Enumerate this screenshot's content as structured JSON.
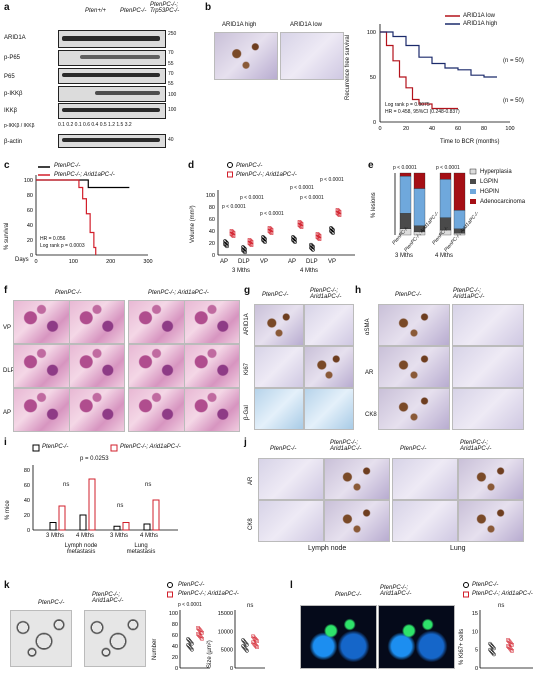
{
  "panels": {
    "a": {
      "label": "a",
      "genotypes": [
        "Pten+/+",
        "PtenPC-/-",
        "PtenPC-/-; Trp53PC-/-"
      ],
      "rows": [
        "ARID1A",
        "p-P65",
        "P65",
        "p-IKKβ",
        "IKKβ",
        "p-IKKβ / IKKβ",
        "β-actin"
      ],
      "mw": [
        "250",
        "70",
        "55",
        "70",
        "55",
        "100",
        "100",
        "40"
      ],
      "ratios": "0.1 0.2 0.1 0.6 0.4 0.5 1.2 1.5 3.2"
    },
    "b": {
      "label": "b",
      "ihc_labels": [
        "ARID1A high",
        "ARID1A low"
      ],
      "legend": [
        "ARID1A low",
        "ARID1A high"
      ],
      "stats": [
        "Log rank p = 0.0075",
        "HR = 0.458, 95%CI (0.248-0.837)"
      ],
      "n_labels": [
        "(n = 50)",
        "(n = 50)"
      ]
    },
    "c": {
      "label": "c",
      "legend": [
        "PtenPC-/-",
        "PtenPC-/-; Arid1aPC-/-"
      ],
      "stats": [
        "HR = 0.056",
        "Log rank p = 0.0003"
      ]
    },
    "d": {
      "label": "d",
      "legend": [
        "PtenPC-/-",
        "PtenPC-/-; Arid1aPC-/-"
      ],
      "pvals": [
        "p < 0.0001",
        "p < 0.0001",
        "p < 0.0001",
        "p < 0.0001",
        "p < 0.0001",
        "p < 0.0001"
      ]
    },
    "e": {
      "label": "e",
      "legend": [
        "Hyperplasia",
        "LGPIN",
        "HGPIN",
        "Adenocarcinoma"
      ],
      "pvals": [
        "p < 0.0001",
        "p < 0.0001"
      ]
    },
    "f": {
      "label": "f",
      "titles": [
        "PtenPC-/-",
        "PtenPC-/-; Arid1aPC-/-"
      ],
      "rows": [
        "VP",
        "DLP",
        "AP"
      ]
    },
    "g": {
      "label": "g",
      "titles": [
        "PtenPC-/-",
        "PtenPC-/-; Arid1aPC-/-"
      ],
      "rows": [
        "ARID1A",
        "Ki67",
        "β-Gal"
      ]
    },
    "h": {
      "label": "h",
      "titles": [
        "PtenPC-/-",
        "PtenPC-/-; Arid1aPC-/-"
      ],
      "rows": [
        "αSMA",
        "AR",
        "CK8"
      ]
    },
    "i": {
      "label": "i",
      "legend": [
        "PtenPC-/-",
        "PtenPC-/-; Arid1aPC-/-"
      ],
      "groups": [
        "Lymph node metastasis",
        "Lung metastasis"
      ],
      "annotations": [
        "ns",
        "p = 0.0253",
        "ns",
        "ns"
      ]
    },
    "j": {
      "label": "j",
      "titles": [
        "PtenPC-/-",
        "PtenPC-/-; Arid1aPC-/-",
        "PtenPC-/-",
        "PtenPC-/-; Arid1aPC-/-"
      ],
      "rows": [
        "AR",
        "CK8"
      ],
      "tissues": [
        "Lymph node",
        "Lung"
      ]
    },
    "k": {
      "label": "k",
      "titles": [
        "PtenPC-/-",
        "PtenPC-/-; Arid1aPC-/-"
      ],
      "legend": [
        "PtenPC-/-",
        "PtenPC-/-; Arid1aPC-/-"
      ],
      "annotations": [
        "p < 0.0001",
        "ns"
      ]
    },
    "l": {
      "label": "l",
      "titles": [
        "PtenPC-/-",
        "PtenPC-/-; Arid1aPC-/-"
      ],
      "legend": [
        "PtenPC-/-",
        "PtenPC-/-; Arid1aPC-/-"
      ],
      "annotations": [
        "ns"
      ]
    }
  },
  "chart_data": [
    {
      "id": "b-km",
      "type": "line",
      "xlabel": "Time to BCR (months)",
      "ylabel": "Recurrence free survival",
      "xlim": [
        0,
        100
      ],
      "ylim": [
        0,
        100
      ],
      "xticks": [
        0,
        20,
        40,
        60,
        80,
        100
      ],
      "yticks": [
        0,
        50,
        100
      ],
      "series": [
        {
          "name": "ARID1A low",
          "color": "#b3121b",
          "x": [
            0,
            5,
            10,
            15,
            20,
            25,
            30,
            40,
            55,
            60
          ],
          "y": [
            100,
            85,
            68,
            50,
            38,
            25,
            20,
            15,
            15,
            15
          ]
        },
        {
          "name": "ARID1A high",
          "color": "#1b2a6b",
          "x": [
            0,
            10,
            20,
            30,
            40,
            50,
            60,
            70,
            80,
            90
          ],
          "y": [
            100,
            95,
            85,
            72,
            65,
            60,
            58,
            52,
            50,
            50
          ]
        }
      ]
    },
    {
      "id": "c-survival",
      "type": "line",
      "ylabel": "% survival",
      "xlabel": "Days",
      "xlim": [
        0,
        300
      ],
      "ylim": [
        0,
        100
      ],
      "xticks": [
        0,
        100,
        200,
        300
      ],
      "yticks": [
        0,
        20,
        40,
        60,
        80,
        100
      ],
      "series": [
        {
          "color": "#000000",
          "x": [
            0,
            130,
            140,
            250
          ],
          "y": [
            100,
            100,
            90,
            90
          ]
        },
        {
          "color": "#d21f2b",
          "x": [
            0,
            115,
            125,
            135,
            145,
            155,
            160
          ],
          "y": [
            100,
            90,
            75,
            55,
            30,
            10,
            0
          ]
        }
      ]
    },
    {
      "id": "d-volume",
      "type": "scatter",
      "ylabel": "Volume (mm³)",
      "ylim": [
        0,
        100
      ],
      "yticks": [
        0,
        20,
        40,
        60,
        80,
        100
      ],
      "categories": [
        "AP",
        "DLP",
        "VP",
        "AP",
        "DLP",
        "VP"
      ],
      "groups": [
        "3 Mths",
        "4 Mths"
      ],
      "series": [
        {
          "name": "PtenPC-/-",
          "values": [
            18,
            8,
            25,
            25,
            12,
            40
          ]
        },
        {
          "name": "PtenPC-/-; Arid1aPC-/-",
          "values": [
            35,
            20,
            40,
            50,
            30,
            70
          ]
        }
      ]
    },
    {
      "id": "e-lesions",
      "type": "bar",
      "stacked": true,
      "ylabel": "% lesions",
      "ylim": [
        0,
        100
      ],
      "categories": [
        "PtenPC-/-",
        "PtenPC-/-; Arid1aPC-/-",
        "PtenPC-/-",
        "PtenPC-/-; Arid1aPC-/-"
      ],
      "groups": [
        "3 Mths",
        "4 Mths"
      ],
      "series": [
        {
          "name": "Hyperplasia",
          "color": "#dcdcdc",
          "values": [
            10,
            5,
            8,
            3
          ]
        },
        {
          "name": "LGPIN",
          "color": "#4a4a4a",
          "values": [
            25,
            10,
            20,
            7
          ]
        },
        {
          "name": "HGPIN",
          "color": "#6fa8dc",
          "values": [
            60,
            60,
            62,
            30
          ]
        },
        {
          "name": "Adenocarcinoma",
          "color": "#a50f15",
          "values": [
            5,
            25,
            10,
            60
          ]
        }
      ]
    },
    {
      "id": "i-mice",
      "type": "bar",
      "ylabel": "% mice",
      "ylim": [
        0,
        80
      ],
      "yticks": [
        0,
        20,
        40,
        60,
        80
      ],
      "categories": [
        "3 Mths",
        "4 Mths",
        "3 Mths",
        "4 Mths"
      ],
      "series": [
        {
          "name": "PtenPC-/-",
          "color": "#000000",
          "values": [
            10,
            20,
            5,
            8
          ]
        },
        {
          "name": "PtenPC-/-; Arid1aPC-/-",
          "color": "#d21f2b",
          "values": [
            32,
            68,
            10,
            40
          ]
        }
      ]
    },
    {
      "id": "k-number",
      "type": "scatter",
      "ylabel": "Number",
      "ylim": [
        0,
        100
      ],
      "yticks": [
        0,
        20,
        40,
        60,
        80,
        100
      ],
      "series": [
        {
          "name": "PtenPC-/-",
          "values": [
            42
          ]
        },
        {
          "name": "PtenPC-/-; Arid1aPC-/-",
          "values": [
            62
          ]
        }
      ]
    },
    {
      "id": "k-size",
      "type": "scatter",
      "ylabel": "Size (µm²)",
      "ylim": [
        0,
        15000
      ],
      "yticks": [
        0,
        5000,
        10000,
        15000
      ],
      "series": [
        {
          "name": "PtenPC-/-",
          "values": [
            6000
          ]
        },
        {
          "name": "PtenPC-/-; Arid1aPC-/-",
          "values": [
            7000
          ]
        }
      ]
    },
    {
      "id": "l-ki67",
      "type": "scatter",
      "ylabel": "% Ki67+ cells",
      "ylim": [
        0,
        15
      ],
      "yticks": [
        0,
        5,
        10,
        15
      ],
      "series": [
        {
          "name": "PtenPC-/-",
          "values": [
            5
          ]
        },
        {
          "name": "PtenPC-/-; Arid1aPC-/-",
          "values": [
            6
          ]
        }
      ]
    }
  ]
}
